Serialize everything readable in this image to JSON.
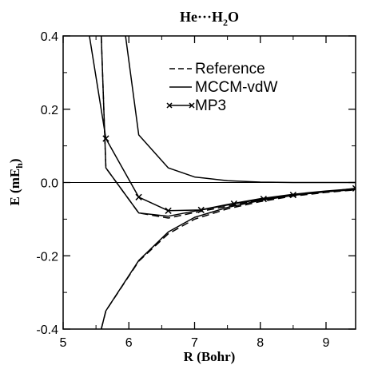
{
  "chart_data": {
    "type": "line",
    "title_parts": {
      "main": "He···H",
      "sub": "2",
      "tail": "O"
    },
    "xlabel": "R (Bohr)",
    "ylabel_parts": {
      "main": "E (mE",
      "sub": "h",
      "tail": ")"
    },
    "xlim": [
      5,
      9.45
    ],
    "ylim": [
      -0.4,
      0.4
    ],
    "xticks": [
      5,
      6,
      7,
      8,
      9
    ],
    "xtick_labels": [
      "5",
      "6",
      "7",
      "8",
      "9"
    ],
    "yticks": [
      -0.4,
      -0.2,
      0.0,
      0.2,
      0.4
    ],
    "ytick_labels": [
      "-0.4",
      "-0.2",
      "0.0",
      "0.2",
      "0.4"
    ],
    "zero_line": true,
    "legend_position": "top-right",
    "series": [
      {
        "name": "Reference",
        "style": "dashed",
        "branches": [
          {
            "x": [
              5.58,
              5.65,
              6.15,
              6.6,
              7.0,
              7.5,
              8.0,
              8.5,
              9.0,
              9.45
            ],
            "y": [
              0.4,
              0.04,
              -0.083,
              -0.097,
              -0.082,
              -0.065,
              -0.048,
              -0.034,
              -0.025,
              -0.019
            ]
          },
          {
            "x": [
              5.58,
              5.65,
              6.15,
              6.6,
              7.0,
              7.5,
              8.0,
              8.5,
              9.0,
              9.45
            ],
            "y": [
              -0.4,
              -0.35,
              -0.215,
              -0.14,
              -0.1,
              -0.072,
              -0.052,
              -0.037,
              -0.027,
              -0.02
            ]
          }
        ]
      },
      {
        "name": "MCCM-vdW",
        "style": "solid",
        "branches": [
          {
            "x": [
              5.58,
              5.65,
              6.15,
              6.6,
              7.0,
              7.5,
              8.0,
              8.5,
              9.0,
              9.45
            ],
            "y": [
              0.4,
              0.04,
              -0.083,
              -0.092,
              -0.078,
              -0.06,
              -0.044,
              -0.032,
              -0.023,
              -0.017
            ]
          },
          {
            "x": [
              5.58,
              5.65,
              6.15,
              6.6,
              7.0,
              7.5,
              8.0,
              8.5,
              9.0,
              9.45
            ],
            "y": [
              -0.4,
              -0.35,
              -0.213,
              -0.135,
              -0.095,
              -0.068,
              -0.049,
              -0.035,
              -0.025,
              -0.019
            ]
          },
          {
            "x": [
              5.95,
              6.15,
              6.6,
              7.0,
              7.5,
              8.0,
              8.5,
              9.0,
              9.45
            ],
            "y": [
              0.4,
              0.13,
              0.04,
              0.015,
              0.005,
              0.001,
              0.0,
              0.0,
              0.0
            ]
          }
        ]
      },
      {
        "name": "MP3",
        "style": "solid-markers",
        "marker": "x",
        "branches": [
          {
            "x": [
              5.4,
              5.65,
              6.15,
              6.6,
              7.1,
              7.6,
              8.05,
              8.5,
              9.0,
              9.45
            ],
            "y": [
              0.4,
              0.12,
              -0.04,
              -0.077,
              -0.075,
              -0.058,
              -0.045,
              -0.034,
              -0.025,
              -0.016
            ],
            "markers_x": [
              5.65,
              6.15,
              6.6,
              7.1,
              7.6,
              8.05,
              8.5,
              9.45
            ],
            "markers_y": [
              0.12,
              -0.04,
              -0.077,
              -0.075,
              -0.058,
              -0.045,
              -0.034,
              -0.016
            ]
          }
        ]
      }
    ]
  }
}
